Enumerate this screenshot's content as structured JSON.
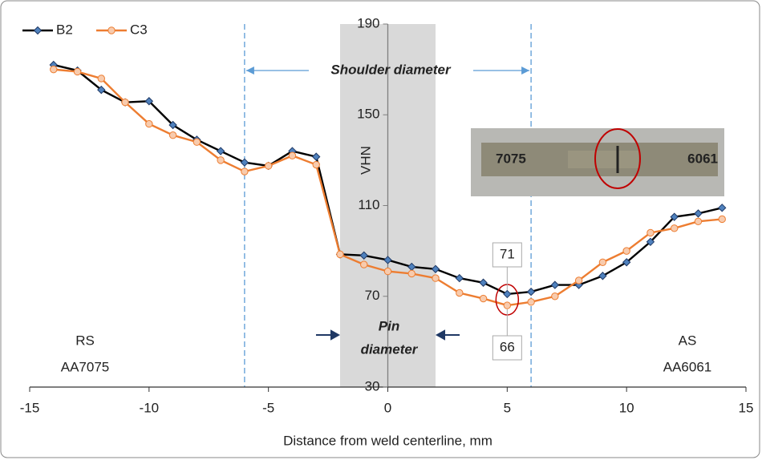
{
  "chart_data": {
    "type": "line",
    "x_label": "Distance from weld centerline, mm",
    "y_label": "VHN",
    "x": [
      -14,
      -13,
      -12,
      -11,
      -10,
      -9,
      -8,
      -7,
      -6,
      -5,
      -4,
      -3,
      -2,
      -1,
      0,
      1,
      2,
      3,
      4,
      5,
      6,
      7,
      8,
      9,
      10,
      11,
      12,
      13,
      14
    ],
    "series": [
      {
        "name": "B2",
        "color": "#000000",
        "marker_color": "#4f81bd",
        "marker": "diamond",
        "values": [
          172,
          169.5,
          161,
          155.5,
          156,
          145.5,
          139,
          134,
          129,
          127.5,
          134,
          131.5,
          88.5,
          88,
          86,
          83,
          82,
          78,
          76,
          71,
          72,
          75,
          75,
          79,
          85,
          94,
          105,
          106.5,
          109
        ]
      },
      {
        "name": "C3",
        "color": "#ed7d31",
        "marker_color": "#f8cbad",
        "marker": "circle",
        "values": [
          170,
          169,
          166,
          155.5,
          146,
          141,
          138,
          130,
          125,
          127.5,
          132,
          128,
          88.5,
          84,
          81,
          80,
          78,
          71.5,
          69,
          66,
          67.5,
          70,
          77,
          85,
          90,
          98,
          100,
          103,
          104
        ]
      }
    ],
    "xlim": [
      -15,
      15
    ],
    "xticks": [
      -15,
      -10,
      -5,
      0,
      5,
      10,
      15
    ],
    "ylim": [
      30,
      190
    ],
    "yticks": [
      30,
      70,
      110,
      150,
      190
    ],
    "pin_region": [
      -2,
      2
    ],
    "shoulder_lines": [
      -6,
      6
    ],
    "annotations": {
      "shoulder": "Shoulder diameter",
      "pin": [
        "Pin",
        "diameter"
      ],
      "left": [
        "RS",
        "AA7075"
      ],
      "right": [
        "AS",
        "AA6061"
      ],
      "callouts": [
        "71",
        "66"
      ],
      "inset": [
        "7075",
        "6061"
      ]
    }
  }
}
